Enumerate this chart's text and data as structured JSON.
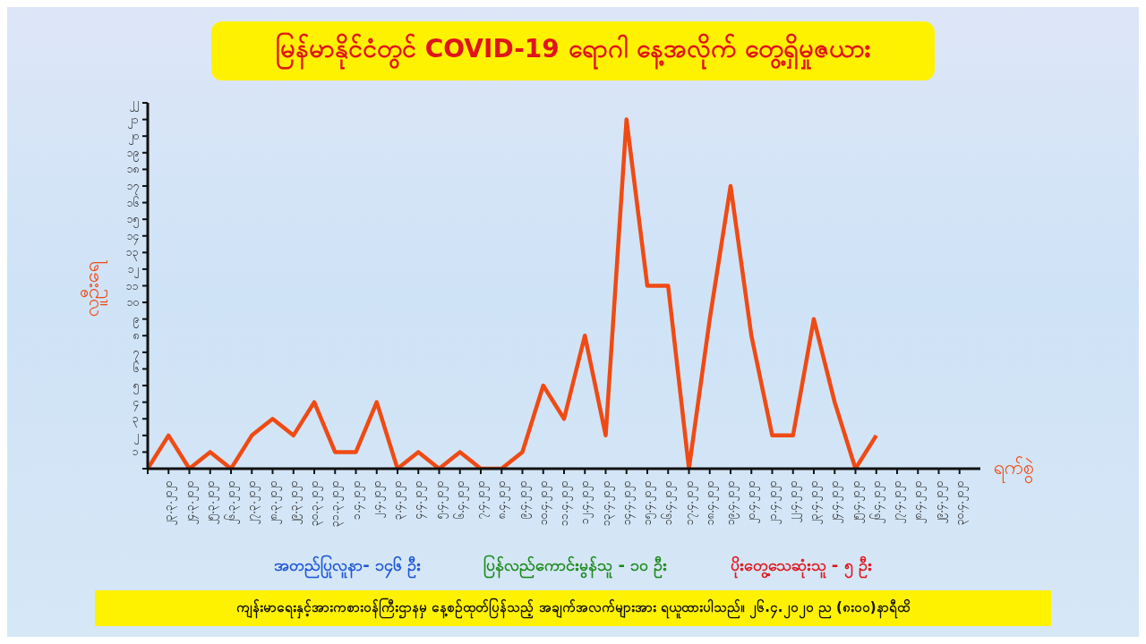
{
  "chart_data": {
    "type": "line",
    "title": "မြန်မာနိုင်ငံတွင် COVID-19 ရောဂါ နေ့အလိုက် တွေ့ရှိမှုဇယား",
    "xlabel": "ရက်စွဲ",
    "ylabel": "လူဦးရေ",
    "categories": [
      null,
      "၂၃.၃.၂၀၂၀",
      "၂၄.၃.၂၀၂၀",
      "၂၅.၃.၂၀၂၀",
      "၂၆.၃.၂၀၂၀",
      "၂၇.၃.၂၀၂၀",
      "၂၈.၃.၂၀၂၀",
      "၂၉.၃.၂၀၂၀",
      "၃၀.၃.၂၀၂၀",
      "၃၁.၃.၂၀၂၀",
      "၁.၄.၂၀၂၀",
      "၂.၄.၂၀၂၀",
      "၃.၄.၂၀၂၀",
      "၄.၄.၂၀၂၀",
      "၅.၄.၂၀၂၀",
      "၆.၄.၂၀၂၀",
      "၇.၄.၂၀၂၀",
      "၈.၄.၂၀၂၀",
      "၉.၄.၂၀၂၀",
      "၁၀.၄.၂၀၂၀",
      "၁၁.၄.၂၀၂၀",
      "၁၂.၄.၂၀၂၀",
      "၁၃.၄.၂၀၂၀",
      "၁၄.၄.၂၀၂၀",
      "၁၅.၄.၂၀၂၀",
      "၁၆.၄.၂၀၂၀",
      "၁၇.၄.၂၀၂၀",
      "၁၈.၄.၂၀၂၀",
      "၁၉.၄.၂၀၂၀",
      "၂၀.၄.၂၀၂၀",
      "၂၁.၄.၂၀၂၀",
      "၂၂.၄.၂၀၂၀",
      "၂၃.၄.၂၀၂၀",
      "၂၄.၄.၂၀၂၀",
      "၂၅.၄.၂၀၂၀",
      "၂၆.၄.၂၀၂၀",
      "၂၇.၄.၂၀၂၀",
      "၂၈.၄.၂၀၂၀",
      "၂၉.၄.၂၀၂၀",
      "၃၀.၄.၂၀၂၀"
    ],
    "series": [
      {
        "color": "#f04a14",
        "values": [
          0,
          2,
          0,
          1,
          0,
          2,
          3,
          2,
          4,
          1,
          1,
          4,
          0,
          1,
          0,
          1,
          0,
          0,
          1,
          5,
          3,
          8,
          2,
          21,
          11,
          11,
          0,
          9,
          17,
          8,
          2,
          2,
          9,
          4,
          0,
          2,
          null,
          null,
          null,
          null
        ]
      }
    ],
    "ylim": [
      0,
      22
    ],
    "yticks": [
      {
        "value": 0,
        "label": null
      },
      {
        "value": 1,
        "label": "၁"
      },
      {
        "value": 2,
        "label": "၂"
      },
      {
        "value": 3,
        "label": "၃"
      },
      {
        "value": 4,
        "label": "၄"
      },
      {
        "value": 5,
        "label": "၅"
      },
      {
        "value": 6,
        "label": "၆"
      },
      {
        "value": 7,
        "label": "၇"
      },
      {
        "value": 8,
        "label": "၈"
      },
      {
        "value": 9,
        "label": "၉"
      },
      {
        "value": 10,
        "label": "၁၀"
      },
      {
        "value": 11,
        "label": "၁၁"
      },
      {
        "value": 12,
        "label": "၁၂"
      },
      {
        "value": 13,
        "label": "၁၃"
      },
      {
        "value": 14,
        "label": "၁၄"
      },
      {
        "value": 15,
        "label": "၁၅"
      },
      {
        "value": 16,
        "label": "၁၆"
      },
      {
        "value": 17,
        "label": "၁၇"
      },
      {
        "value": 18,
        "label": "၁၈"
      },
      {
        "value": 19,
        "label": "၁၉"
      },
      {
        "value": 20,
        "label": "၂၀"
      },
      {
        "value": 21,
        "label": "၂၁"
      },
      {
        "value": 22,
        "label": "၂၂"
      }
    ],
    "annotations": [
      "အတည်ပြုလူနာ- ၁၄၆ ဦး",
      "ပြန်လည်ကောင်းမွန်သူ - ၁၀ ဦး",
      "ပိုးတွေ့သေဆုံးသူ - ၅ ဦး",
      "ကျန်းမာရေးနှင့်အားကစားဝန်ကြီးဌာနမှ နေ့စဉ်ထုတ်ပြန်သည့် အချက်အလက်များအား ရယူထားပါသည်။ ၂၆.၄.၂၀၂၀ ည (၈း၀၀)နာရီထိ"
    ],
    "grid": false,
    "legend": false,
    "marker": "none",
    "line_style": "solid"
  }
}
